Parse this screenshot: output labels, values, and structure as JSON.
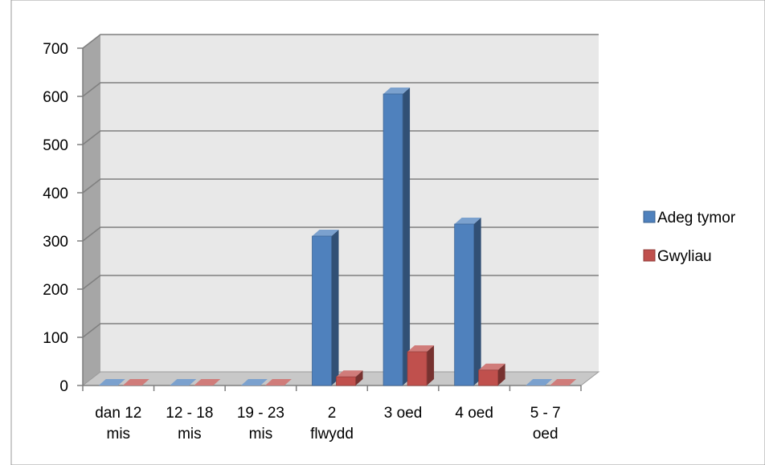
{
  "chart_data": {
    "type": "bar",
    "style": "3d-clustered-column",
    "categories": [
      [
        "dan 12",
        "mis"
      ],
      [
        "12 - 18",
        "mis"
      ],
      [
        "19 - 23",
        "mis"
      ],
      [
        "2",
        "flwydd"
      ],
      [
        "3 oed"
      ],
      [
        "4 oed"
      ],
      [
        "5 - 7",
        "oed"
      ]
    ],
    "series": [
      {
        "name": "Adeg tymor",
        "color": "#4F81BD",
        "values": [
          0,
          0,
          0,
          310,
          605,
          335,
          0
        ]
      },
      {
        "name": "Gwyliau",
        "color": "#C0504D",
        "values": [
          0,
          0,
          0,
          18,
          70,
          32,
          0
        ]
      }
    ],
    "ylim": [
      0,
      700
    ],
    "yticks": [
      0,
      100,
      200,
      300,
      400,
      500,
      600,
      700
    ],
    "grid": true,
    "legend_position": "right",
    "xlabel": "",
    "ylabel": "",
    "title": ""
  }
}
